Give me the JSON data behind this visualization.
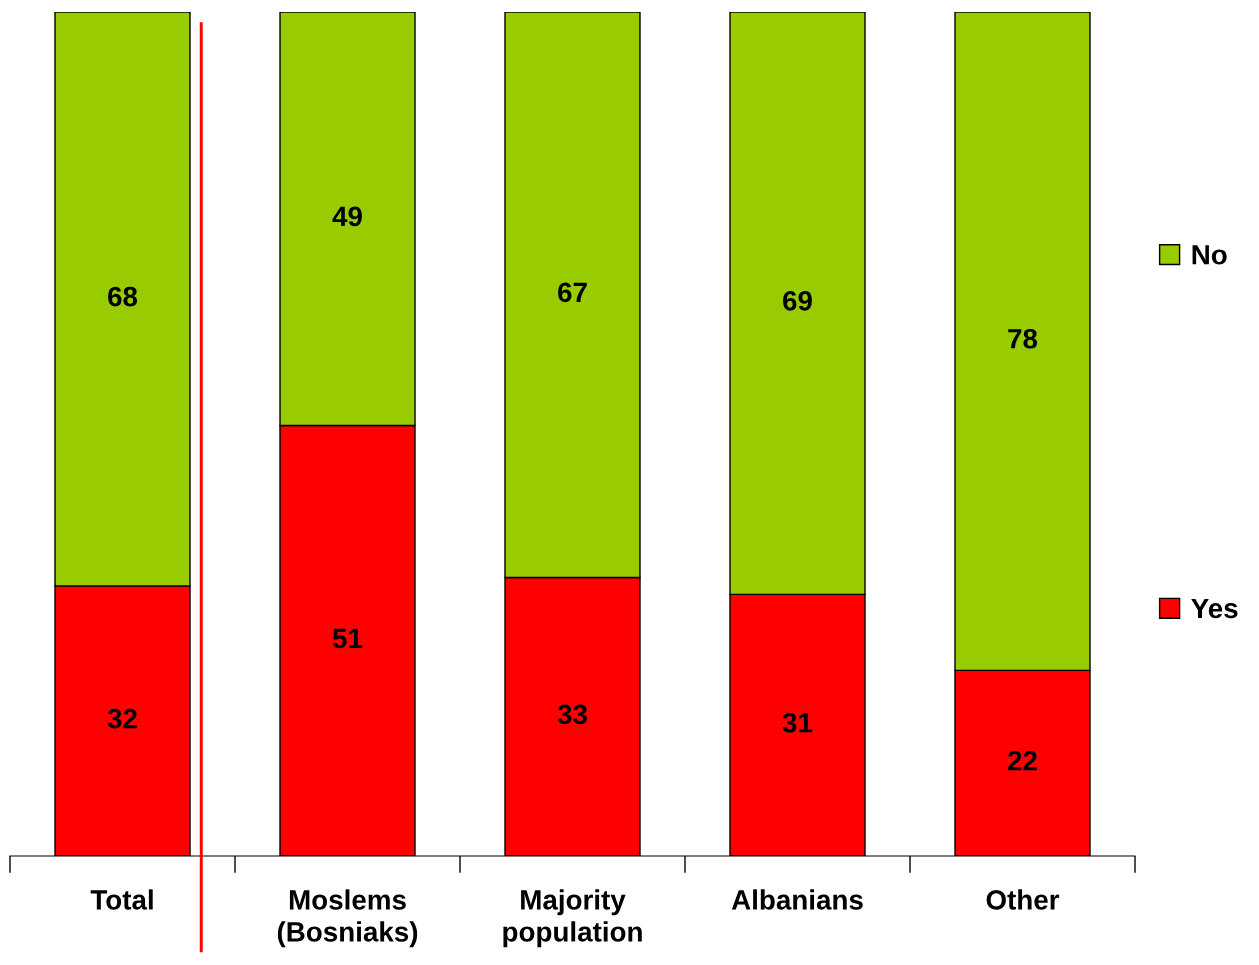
{
  "chart_data": {
    "type": "bar",
    "stacked": true,
    "categories": [
      "Total",
      "Moslems\n(Bosniaks)",
      "Majority\npopulation",
      "Albanians",
      "Other"
    ],
    "series": [
      {
        "name": "Yes",
        "color": "#ff0000",
        "values": [
          32,
          51,
          33,
          31,
          22
        ]
      },
      {
        "name": "No",
        "color": "#99cc00",
        "values": [
          68,
          49,
          67,
          69,
          78
        ]
      }
    ],
    "data_labels": true,
    "legend": "right",
    "tick_labels": "x"
  }
}
